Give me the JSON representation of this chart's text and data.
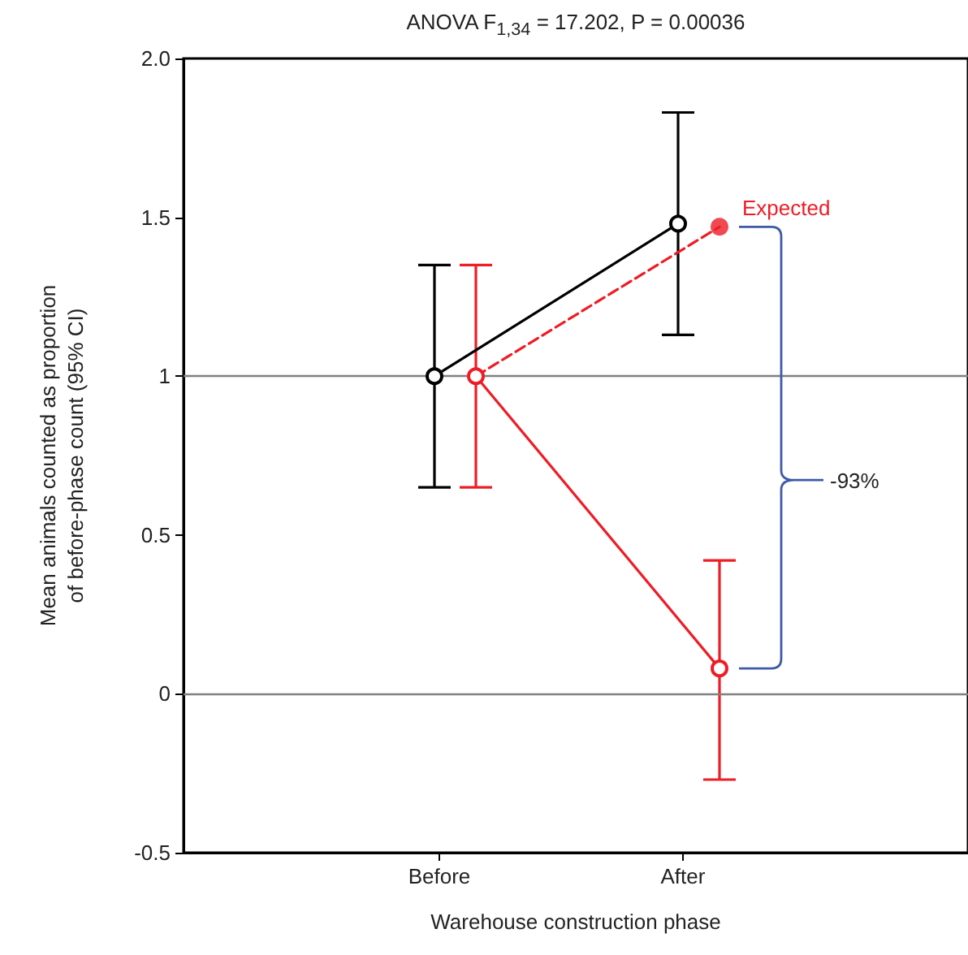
{
  "chart_data": {
    "type": "line",
    "title": "ANOVA F$_{1,34}$ = 17.202, P = 0.00036",
    "xlabel": "Warehouse construction phase",
    "ylabel": "Mean animals counted as proportion\nof before-phase count (95% CI)",
    "categories": [
      "Before",
      "After"
    ],
    "ylim": [
      -0.5,
      2
    ],
    "yticks": [
      {
        "value": -0.5,
        "label": "-0.5"
      },
      0,
      0.5,
      1,
      1.5,
      {
        "value": 2,
        "label": "2.0"
      }
    ],
    "grid": false,
    "marker": "circle",
    "series": [
      {
        "color": "#000000",
        "values": [
          1.0,
          1.48
        ],
        "errors": [
          [
            0.65,
            1.35
          ],
          [
            1.13,
            1.83
          ]
        ]
      },
      {
        "color": "#ee1c25",
        "values": [
          1.0,
          0.08
        ],
        "errors": [
          [
            0.65,
            1.35
          ],
          [
            -0.27,
            0.42
          ]
        ]
      },
      {
        "color": "#ee1c25",
        "values": [
          1.0,
          1.47
        ],
        "line_style": "dashed",
        "marker": "none"
      },
      {
        "type": "scatter",
        "color": "#ee1c25",
        "values": [
          null,
          1.47
        ]
      }
    ],
    "ref_lines": [
      {
        "axis": "y",
        "value": 1,
        "color": "#808080"
      },
      {
        "axis": "y",
        "value": 0,
        "color": "#808080"
      }
    ],
    "annotations": [
      {
        "text": "Expected",
        "x": "After",
        "y": 1.47
      },
      "-93%"
    ]
  }
}
